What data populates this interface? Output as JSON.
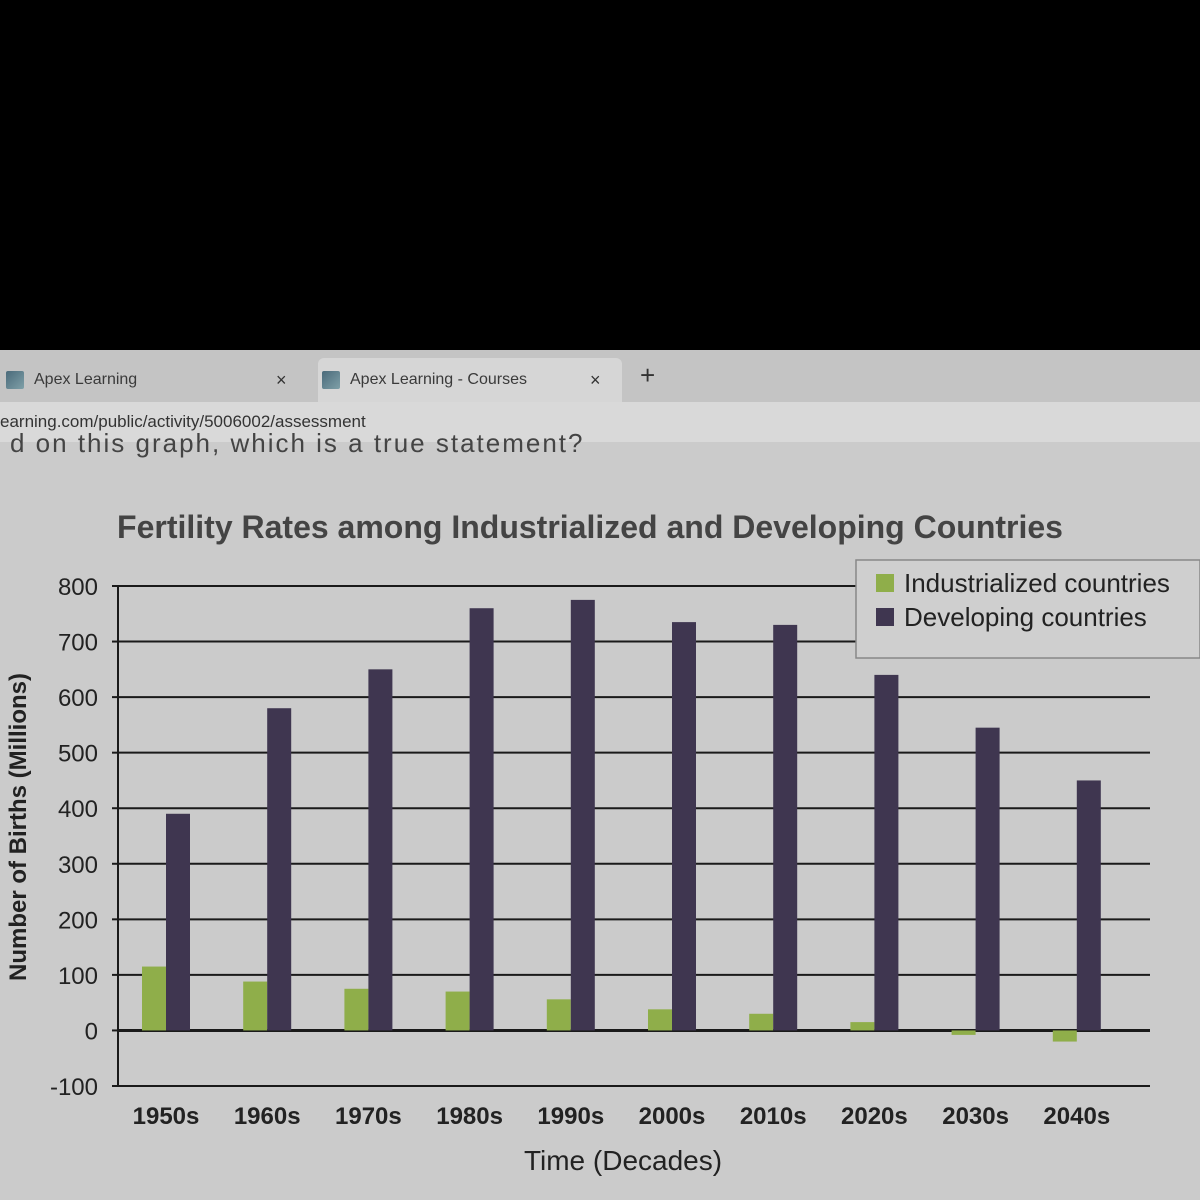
{
  "browser": {
    "tabs": [
      {
        "label": "Apex Learning",
        "close": "×"
      },
      {
        "label": "Apex Learning - Courses",
        "close": "×"
      }
    ],
    "new_tab": "+",
    "url": "earning.com/public/activity/5006002/assessment"
  },
  "question_fragment": "d on this graph, which is a true statement?",
  "chart_data": {
    "type": "bar",
    "title": "Fertility Rates among Industrialized and Developing Countries",
    "xlabel": "Time (Decades)",
    "ylabel": "Number of Births (Millions)",
    "ylim": [
      -100,
      800
    ],
    "yticks": [
      -100,
      0,
      100,
      200,
      300,
      400,
      500,
      600,
      700,
      800
    ],
    "categories": [
      "1950s",
      "1960s",
      "1970s",
      "1980s",
      "1990s",
      "2000s",
      "2010s",
      "2020s",
      "2030s",
      "2040s"
    ],
    "series": [
      {
        "name": "Industrialized countries",
        "color": "#8fae4a",
        "values": [
          115,
          88,
          75,
          70,
          56,
          38,
          30,
          15,
          -8,
          -20
        ]
      },
      {
        "name": "Developing countries",
        "color": "#3f3650",
        "values": [
          390,
          580,
          650,
          760,
          775,
          735,
          730,
          640,
          545,
          450
        ]
      }
    ],
    "legend": "top-right",
    "grid": true
  }
}
